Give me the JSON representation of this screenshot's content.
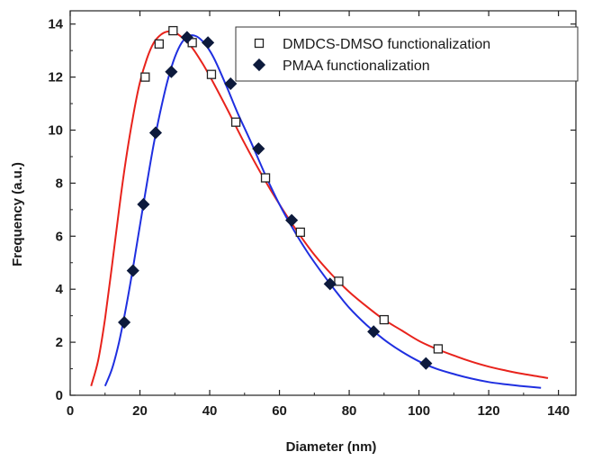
{
  "chart_data": {
    "type": "scatter",
    "xlabel": "Diameter (nm)",
    "ylabel": "Frequency (a.u.)",
    "xlim": [
      0,
      145
    ],
    "ylim": [
      0,
      14.5
    ],
    "x_ticks": [
      0,
      20,
      40,
      60,
      80,
      100,
      120,
      140
    ],
    "y_ticks": [
      0,
      2,
      4,
      6,
      8,
      10,
      12,
      14
    ],
    "x_tick_labels": [
      "0",
      "20",
      "40",
      "60",
      "80",
      "100",
      "120",
      "140"
    ],
    "y_tick_labels": [
      "0",
      "2",
      "4",
      "6",
      "8",
      "10",
      "12",
      "14"
    ],
    "legend_position": "top-right",
    "grid": false,
    "series": [
      {
        "name": "DMDCS-DMSO functionalization",
        "marker": "open-square",
        "marker_color": "#222222",
        "fit_color": "#e8231c",
        "points": [
          [
            21.5,
            12.0
          ],
          [
            25.5,
            13.25
          ],
          [
            29.5,
            13.75
          ],
          [
            35.0,
            13.3
          ],
          [
            40.5,
            12.1
          ],
          [
            47.5,
            10.3
          ],
          [
            56.0,
            8.2
          ],
          [
            66.0,
            6.15
          ],
          [
            77.0,
            4.3
          ],
          [
            90.0,
            2.85
          ],
          [
            105.5,
            1.75
          ]
        ],
        "fit": [
          [
            6,
            0.35
          ],
          [
            8,
            1.3
          ],
          [
            10,
            2.9
          ],
          [
            12,
            4.9
          ],
          [
            14,
            7.0
          ],
          [
            16,
            8.9
          ],
          [
            18,
            10.5
          ],
          [
            20,
            11.8
          ],
          [
            22,
            12.7
          ],
          [
            24,
            13.3
          ],
          [
            26,
            13.6
          ],
          [
            28,
            13.72
          ],
          [
            30,
            13.68
          ],
          [
            32,
            13.5
          ],
          [
            35,
            13.1
          ],
          [
            38,
            12.5
          ],
          [
            41,
            11.8
          ],
          [
            45,
            10.8
          ],
          [
            50,
            9.5
          ],
          [
            55,
            8.3
          ],
          [
            60,
            7.2
          ],
          [
            65,
            6.2
          ],
          [
            70,
            5.3
          ],
          [
            75,
            4.55
          ],
          [
            80,
            3.9
          ],
          [
            85,
            3.35
          ],
          [
            90,
            2.85
          ],
          [
            95,
            2.45
          ],
          [
            100,
            2.05
          ],
          [
            105,
            1.75
          ],
          [
            110,
            1.5
          ],
          [
            115,
            1.27
          ],
          [
            120,
            1.08
          ],
          [
            125,
            0.93
          ],
          [
            130,
            0.8
          ],
          [
            137,
            0.65
          ]
        ]
      },
      {
        "name": "PMAA functionalization",
        "marker": "filled-diamond",
        "marker_color": "#0d1a3c",
        "fit_color": "#1f2fe0",
        "points": [
          [
            15.5,
            2.75
          ],
          [
            18.0,
            4.7
          ],
          [
            21.0,
            7.2
          ],
          [
            24.5,
            9.9
          ],
          [
            29.0,
            12.2
          ],
          [
            33.5,
            13.5
          ],
          [
            39.5,
            13.3
          ],
          [
            46.0,
            11.75
          ],
          [
            54.0,
            9.3
          ],
          [
            63.5,
            6.6
          ],
          [
            74.5,
            4.2
          ],
          [
            87.0,
            2.4
          ],
          [
            102.0,
            1.2
          ]
        ],
        "fit": [
          [
            10,
            0.35
          ],
          [
            12,
            1.0
          ],
          [
            14,
            2.0
          ],
          [
            16,
            3.3
          ],
          [
            18,
            4.8
          ],
          [
            20,
            6.4
          ],
          [
            22,
            8.0
          ],
          [
            24,
            9.5
          ],
          [
            26,
            10.8
          ],
          [
            28,
            11.9
          ],
          [
            30,
            12.75
          ],
          [
            32,
            13.3
          ],
          [
            34,
            13.55
          ],
          [
            36,
            13.55
          ],
          [
            38,
            13.35
          ],
          [
            40,
            13.0
          ],
          [
            42,
            12.5
          ],
          [
            45,
            11.6
          ],
          [
            48,
            10.65
          ],
          [
            52,
            9.5
          ],
          [
            56,
            8.3
          ],
          [
            60,
            7.2
          ],
          [
            64,
            6.25
          ],
          [
            68,
            5.4
          ],
          [
            72,
            4.65
          ],
          [
            76,
            3.95
          ],
          [
            80,
            3.3
          ],
          [
            85,
            2.65
          ],
          [
            90,
            2.1
          ],
          [
            95,
            1.65
          ],
          [
            100,
            1.28
          ],
          [
            105,
            1.0
          ],
          [
            110,
            0.8
          ],
          [
            115,
            0.63
          ],
          [
            120,
            0.5
          ],
          [
            125,
            0.41
          ],
          [
            130,
            0.34
          ],
          [
            135,
            0.28
          ]
        ]
      }
    ]
  }
}
